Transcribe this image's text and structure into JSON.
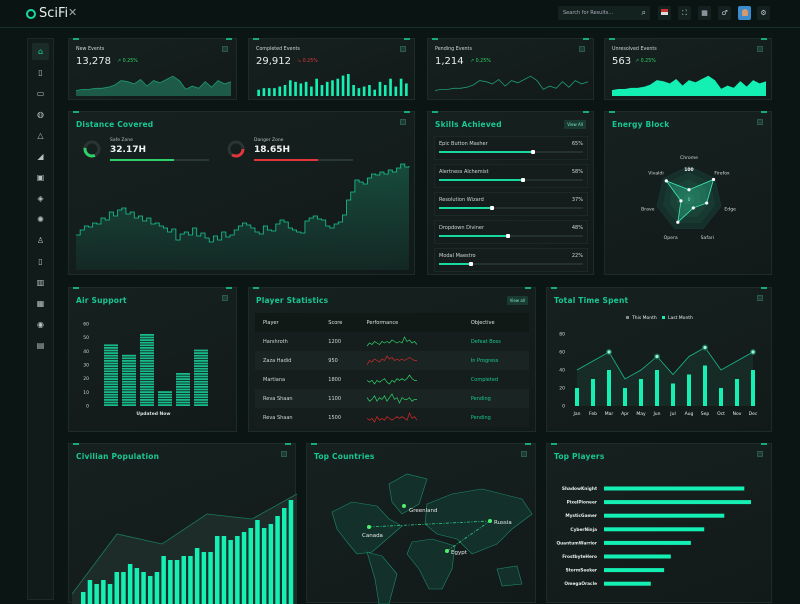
{
  "app": {
    "name": "SciFi",
    "close_icon": "close-icon"
  },
  "header": {
    "search_placeholder": "Search for Results...",
    "icons": [
      "search-icon",
      "flag-icon",
      "fullscreen-icon",
      "apps-icon",
      "notification-icon",
      "avatar",
      "settings-icon"
    ]
  },
  "sidebar": {
    "items": [
      "home-icon",
      "file-icon",
      "store-icon",
      "globe-icon",
      "alert-icon",
      "chart-icon",
      "grid-icon",
      "layers-icon",
      "settings-icon",
      "award-icon",
      "document-icon",
      "package-icon",
      "table-icon",
      "location-icon",
      "inbox-icon"
    ],
    "active": 0
  },
  "colors": {
    "accent": "#14f0b4",
    "title": "#19c792",
    "positive": "#2fd06a",
    "negative": "#e0353b",
    "background": "#0b1614"
  },
  "stats": [
    {
      "label": "New Events",
      "value": "13,278",
      "change": "0.25%",
      "trend": "up",
      "chart": "area",
      "series": [
        5,
        6,
        6,
        7,
        7,
        8,
        10,
        14,
        13,
        11,
        15,
        9,
        14,
        12,
        15,
        18,
        14,
        6,
        9,
        7,
        13,
        8,
        14,
        11,
        13
      ]
    },
    {
      "label": "Completed Events",
      "value": "29,912",
      "change": "0.25%",
      "trend": "down",
      "chart": "bar",
      "series": [
        4,
        5,
        5,
        5,
        6,
        7,
        10,
        9,
        8,
        9,
        6,
        11,
        7,
        9,
        10,
        11,
        13,
        14,
        7,
        5,
        6,
        7,
        4,
        9,
        7,
        11,
        6,
        11,
        8
      ]
    },
    {
      "label": "Pending Events",
      "value": "1,214",
      "change": "0.25%",
      "trend": "up",
      "chart": "line",
      "series": [
        5,
        6,
        6,
        7,
        7,
        8,
        10,
        14,
        13,
        11,
        15,
        9,
        14,
        12,
        15,
        18,
        14,
        6,
        9,
        7,
        13,
        8,
        14,
        11,
        13
      ]
    },
    {
      "label": "Unresolved Events",
      "value": "563",
      "change": "0.25%",
      "trend": "up",
      "chart": "filled",
      "series": [
        5,
        6,
        6,
        7,
        7,
        8,
        10,
        14,
        13,
        11,
        15,
        9,
        14,
        12,
        15,
        18,
        14,
        6,
        9,
        7,
        13,
        8,
        14,
        11,
        13
      ]
    }
  ],
  "distance": {
    "title": "Distance Covered",
    "safe": {
      "label": "Safe Zone",
      "value": "32.17H",
      "percent": 65,
      "color": "#2fd06a"
    },
    "danger": {
      "label": "Danger Zone",
      "value": "18.65H",
      "percent": 65,
      "color": "#e0353b"
    },
    "series": [
      35,
      40,
      44,
      43,
      47,
      46,
      52,
      50,
      58,
      54,
      60,
      62,
      56,
      58,
      52,
      54,
      49,
      52,
      46,
      47,
      44,
      42,
      38,
      41,
      30,
      36,
      38,
      35,
      42,
      34,
      37,
      32,
      28,
      34,
      30,
      38,
      33,
      35,
      40,
      44,
      47,
      45,
      42,
      38,
      36,
      44,
      40,
      39,
      46,
      50,
      48,
      42,
      40,
      38,
      37,
      49,
      52,
      54,
      51,
      50,
      44,
      42,
      46,
      48,
      55,
      70,
      78,
      90,
      88,
      86,
      92,
      96,
      95,
      98,
      96,
      100,
      98,
      102,
      106,
      103,
      104
    ]
  },
  "skills": {
    "title": "Skills Achieved",
    "view_all": "View All",
    "items": [
      {
        "name": "Epic Button Masher",
        "percent": 65
      },
      {
        "name": "Alertness Alchemist",
        "percent": 58
      },
      {
        "name": "Resolution Wizard",
        "percent": 37
      },
      {
        "name": "Dropdown Diviner",
        "percent": 48
      },
      {
        "name": "Modal Maestro",
        "percent": 22
      }
    ]
  },
  "energy": {
    "title": "Energy Block",
    "max_label": "100",
    "min_label": "0",
    "axes": [
      "Chrome",
      "Firefox",
      "Edge",
      "Safari",
      "Opera",
      "Brave",
      "Vivaldi"
    ],
    "values": [
      28,
      95,
      55,
      30,
      78,
      25,
      88
    ]
  },
  "air_support": {
    "title": "Air Support",
    "footer": "Updated Now",
    "chart_data": {
      "type": "bar",
      "values": [
        45,
        38,
        53,
        11,
        24,
        40
      ],
      "ylim": [
        0,
        60
      ],
      "yticks": [
        "0",
        "10",
        "20",
        "30",
        "40",
        "50",
        "60"
      ]
    }
  },
  "players": {
    "title": "Player Statistics",
    "view_all": "View all",
    "columns": [
      "Player",
      "Score",
      "Performance",
      "Objective"
    ],
    "rows": [
      {
        "player": "Harshroth",
        "score": "1200",
        "trend": "up",
        "objective": "Defeat Boss",
        "spark": [
          3,
          5,
          4,
          6,
          5,
          4,
          6,
          5,
          6,
          5,
          7,
          6,
          5,
          6,
          5,
          9,
          6,
          7,
          5,
          6,
          4
        ]
      },
      {
        "player": "Zaza Hadid",
        "score": "950",
        "trend": "down",
        "objective": "In Progress",
        "spark": [
          2,
          5,
          4,
          6,
          5,
          4,
          6,
          5,
          8,
          6,
          7,
          5,
          6,
          5,
          6,
          5,
          6,
          7,
          6,
          5,
          5
        ]
      },
      {
        "player": "Martiana",
        "score": "1800",
        "trend": "up",
        "objective": "Completed",
        "spark": [
          5,
          4,
          5,
          3,
          5,
          4,
          5,
          6,
          4,
          3,
          5,
          4,
          6,
          5,
          6,
          5,
          6,
          8,
          6,
          5,
          5
        ]
      },
      {
        "player": "Reva Shaan",
        "score": "1100",
        "trend": "up",
        "objective": "Pending",
        "spark": [
          6,
          4,
          5,
          7,
          4,
          6,
          5,
          7,
          4,
          6,
          8,
          5,
          6,
          3,
          6,
          5,
          5,
          6,
          4,
          5,
          5
        ]
      },
      {
        "player": "Reva Shaan",
        "score": "1500",
        "trend": "down",
        "objective": "Pending",
        "spark": [
          5,
          4,
          5,
          3,
          6,
          4,
          5,
          4,
          6,
          5,
          4,
          5,
          6,
          5,
          6,
          5,
          4,
          8,
          5,
          6,
          4
        ]
      }
    ]
  },
  "time_spent": {
    "title": "Total Time Spent",
    "chart_data": {
      "type": "bar+line",
      "categories": [
        "Jan",
        "Feb",
        "Mar",
        "Apr",
        "May",
        "Jun",
        "Jul",
        "Aug",
        "Sep",
        "Oct",
        "Nov",
        "Dec"
      ],
      "ylim": [
        0,
        80
      ],
      "yticks": [
        "0",
        "20",
        "40",
        "60",
        "80"
      ],
      "series": [
        {
          "name": "This Month",
          "type": "line",
          "values": [
            40,
            50,
            60,
            30,
            40,
            55,
            35,
            55,
            65,
            40,
            50,
            60
          ]
        },
        {
          "name": "Last Month",
          "type": "bar",
          "values": [
            20,
            30,
            40,
            20,
            30,
            40,
            25,
            35,
            45,
            20,
            30,
            40
          ]
        }
      ]
    }
  },
  "civilian": {
    "title": "Civilian Population",
    "chart_data": {
      "type": "bar+line",
      "bars": [
        3,
        6,
        5,
        6,
        5,
        8,
        8,
        10,
        9,
        8,
        7,
        8,
        12,
        11,
        11,
        12,
        12,
        14,
        13,
        13,
        17,
        17,
        16,
        17,
        18,
        19,
        21,
        19,
        20,
        22,
        24,
        26
      ],
      "line": [
        2,
        14,
        12,
        18,
        17,
        22
      ]
    }
  },
  "countries": {
    "title": "Top Countries",
    "markers": [
      "Greenland",
      "Canada",
      "Russia",
      "Egypt"
    ]
  },
  "top_players": {
    "title": "Top Players",
    "chart_data": {
      "type": "bar",
      "orientation": "horizontal",
      "categories": [
        "ShadowKnight",
        "PixelPioneer",
        "MysticGamer",
        "CyberNinja",
        "QuantumWarrior",
        "FrostbyteHero",
        "StormSeeker",
        "OmegaOracle"
      ],
      "values": [
        210,
        220,
        180,
        150,
        130,
        100,
        90,
        70
      ]
    }
  }
}
